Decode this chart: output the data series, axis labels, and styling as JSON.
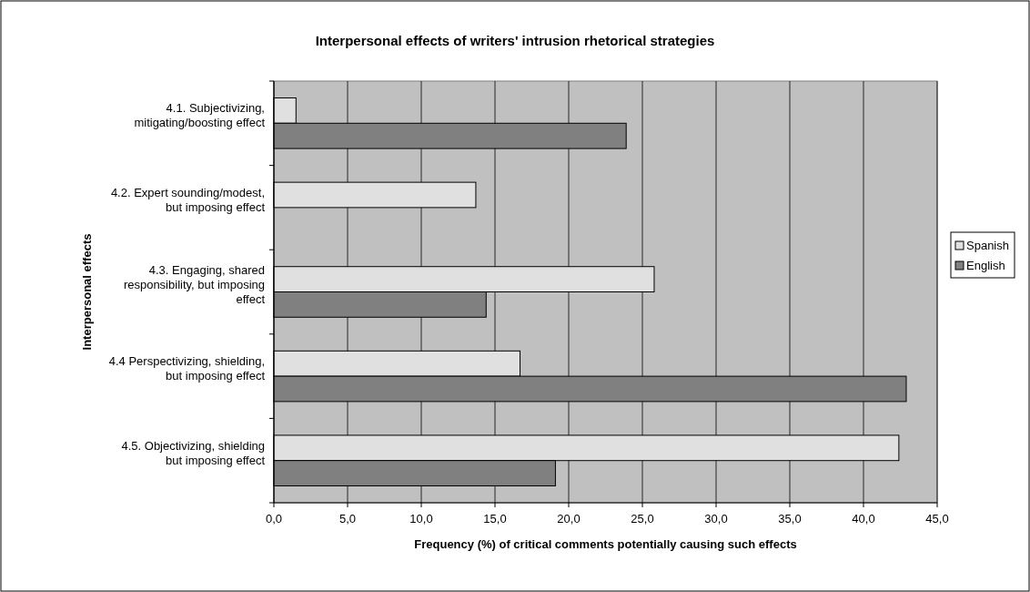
{
  "chart_data": {
    "type": "bar",
    "orientation": "horizontal",
    "title": "Interpersonal effects of writers' intrusion rhetorical strategies",
    "xlabel": "Frequency (%) of critical comments potentially causing such effects",
    "ylabel": "Interpersonal effects",
    "categories": [
      "4.1. Subjectivizing, mitigating/boosting effect",
      "4.2. Expert sounding/modest, but imposing effect",
      "4.3. Engaging, shared responsibility, but imposing effect",
      "4.4 Perspectivizing, shielding, but imposing effect",
      "4.5. Objectivizing, shielding but imposing effect"
    ],
    "series": [
      {
        "name": "Spanish",
        "color": "#e0e0e0",
        "values": [
          1.5,
          13.7,
          25.8,
          16.7,
          42.4
        ]
      },
      {
        "name": "English",
        "color": "#808080",
        "values": [
          23.9,
          null,
          14.4,
          42.9,
          19.1
        ]
      }
    ],
    "xlim": [
      0,
      45
    ],
    "xticks": [
      {
        "value": 0,
        "label": "0,0"
      },
      {
        "value": 5,
        "label": "5,0"
      },
      {
        "value": 10,
        "label": "10,0"
      },
      {
        "value": 15,
        "label": "15,0"
      },
      {
        "value": 20,
        "label": "20,0"
      },
      {
        "value": 25,
        "label": "25,0"
      },
      {
        "value": 30,
        "label": "30,0"
      },
      {
        "value": 35,
        "label": "35,0"
      },
      {
        "value": 40,
        "label": "40,0"
      },
      {
        "value": 45,
        "label": "45,0"
      }
    ],
    "grid": "x",
    "legend": "right"
  }
}
